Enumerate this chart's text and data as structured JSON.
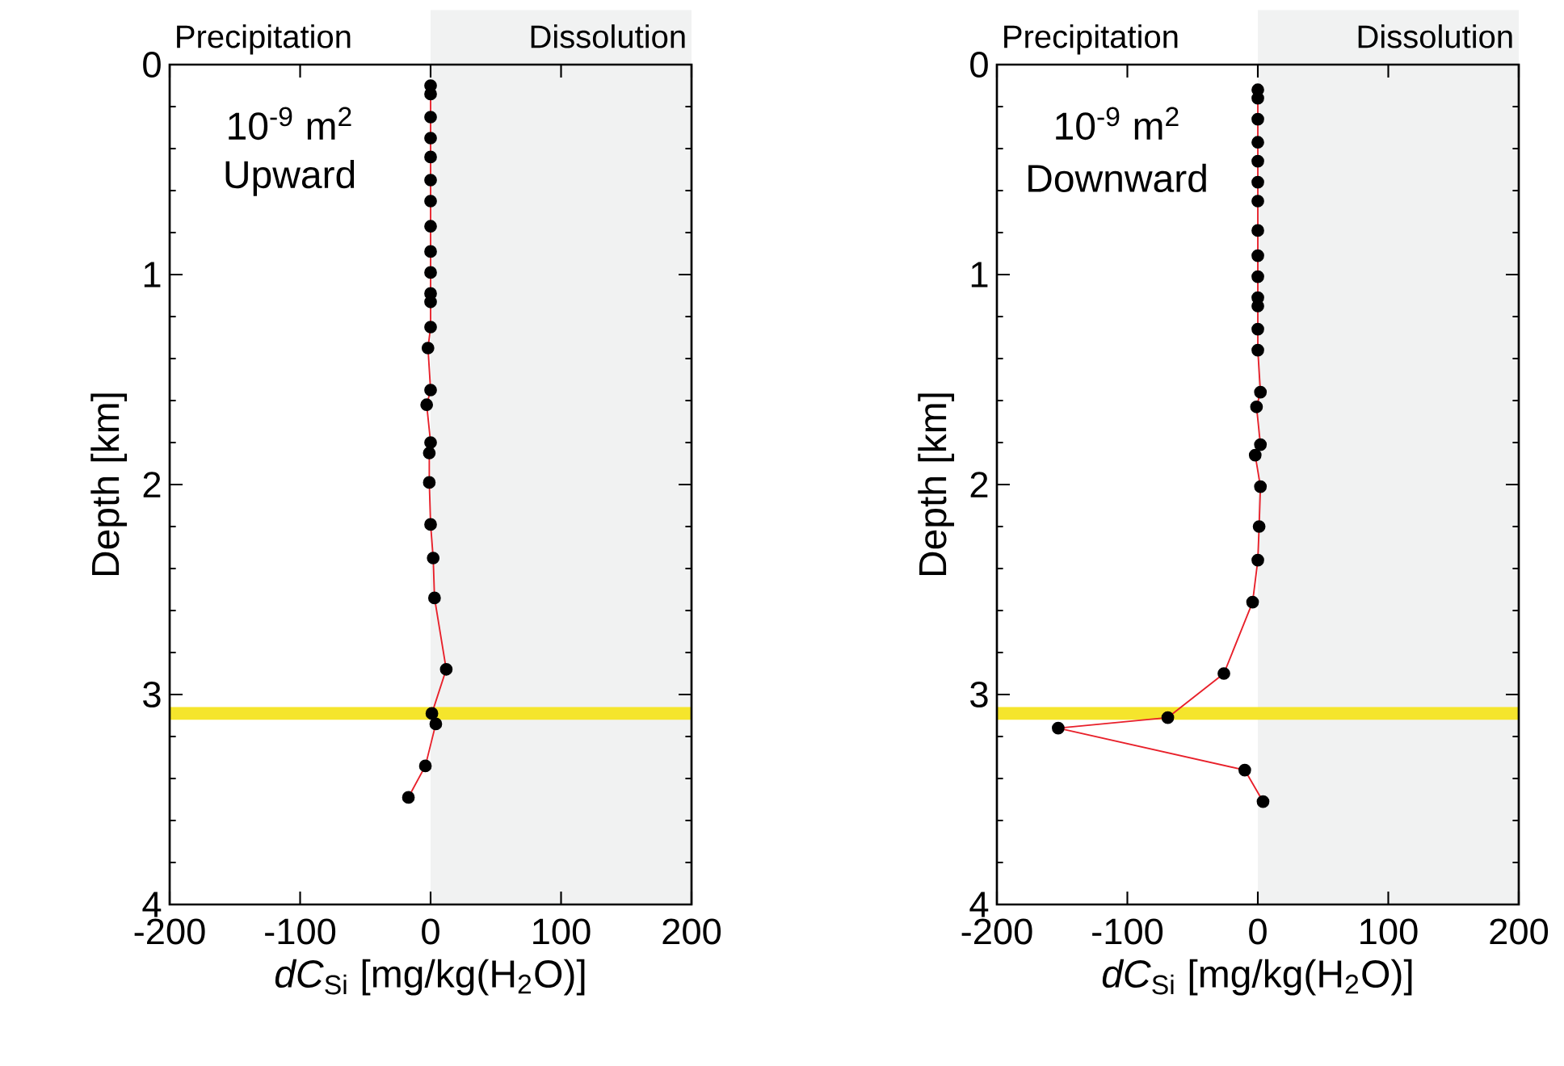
{
  "chart_data": [
    {
      "type": "line",
      "xlabel": "*dC*$_{Si}$ [mg/kg(H$_{2}$O)]",
      "ylabel": "Depth [km]",
      "annotations": [
        "Precipitation",
        "10$^{-9}$ m$^{2}$",
        "Upward"
      ],
      "xlim": [
        -200,
        200
      ],
      "ylim": [
        4,
        0
      ],
      "xticks": [
        -200,
        -100,
        0,
        100,
        200
      ],
      "yticks": [
        0,
        1,
        2,
        3,
        4
      ],
      "marker": "circle",
      "grid": false,
      "bands": [
        {
          "axis": "x",
          "from": 0,
          "to": 200,
          "label": "Dissolution",
          "color": "#f1f2f2"
        },
        {
          "axis": "y",
          "from": 3.06,
          "to": 3.12,
          "color": "#f5e52c"
        }
      ],
      "series": [
        {
          "color": "#e8202a",
          "x": [
            0,
            0,
            0,
            0,
            0,
            0,
            0,
            0,
            0,
            0,
            0,
            0,
            0,
            -2,
            0,
            -3,
            0,
            -1,
            -1,
            0,
            2,
            3,
            12,
            1,
            4,
            -4,
            -17
          ],
          "values": [
            0.1,
            0.14,
            0.25,
            0.35,
            0.44,
            0.55,
            0.65,
            0.77,
            0.89,
            0.99,
            1.09,
            1.13,
            1.25,
            1.35,
            1.55,
            1.62,
            1.8,
            1.85,
            1.99,
            2.19,
            2.35,
            2.54,
            2.88,
            3.09,
            3.14,
            3.34,
            3.49
          ]
        }
      ]
    },
    {
      "type": "line",
      "xlabel": "*dC*$_{Si}$ [mg/kg(H$_{2}$O)]",
      "ylabel": "Depth [km]",
      "annotations": [
        "Precipitation",
        "10$^{-9}$ m$^{2}$",
        "Downward"
      ],
      "xlim": [
        -200,
        200
      ],
      "ylim": [
        4,
        0
      ],
      "xticks": [
        -200,
        -100,
        0,
        100,
        200
      ],
      "yticks": [
        0,
        1,
        2,
        3,
        4
      ],
      "marker": "circle",
      "grid": false,
      "bands": [
        {
          "axis": "x",
          "from": 0,
          "to": 200,
          "label": "Dissolution",
          "color": "#f1f2f2"
        },
        {
          "axis": "y",
          "from": 3.06,
          "to": 3.12,
          "color": "#f5e52c"
        }
      ],
      "series": [
        {
          "color": "#e8202a",
          "x": [
            0,
            0,
            0,
            0,
            0,
            0,
            0,
            0,
            0,
            0,
            0,
            0,
            0,
            0,
            2,
            -1,
            2,
            -2,
            2,
            1,
            0,
            -4,
            -26,
            -69,
            -153,
            -10,
            4
          ],
          "values": [
            0.12,
            0.16,
            0.26,
            0.37,
            0.46,
            0.56,
            0.65,
            0.79,
            0.91,
            1.01,
            1.11,
            1.15,
            1.26,
            1.36,
            1.56,
            1.63,
            1.81,
            1.86,
            2.01,
            2.2,
            2.36,
            2.56,
            2.9,
            3.11,
            3.16,
            3.36,
            3.51
          ]
        }
      ]
    }
  ]
}
